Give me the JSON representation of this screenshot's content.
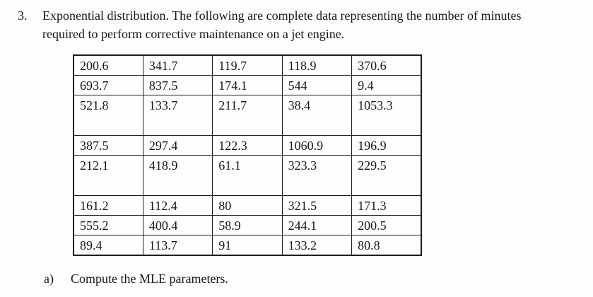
{
  "problem": {
    "number": "3.",
    "lines": [
      "Exponential distribution. The following are complete data representing the number of minutes",
      "required to perform corrective maintenance on a jet engine."
    ]
  },
  "table": {
    "rows": [
      {
        "tall": false,
        "cells": [
          "200.6",
          "341.7",
          "119.7",
          "118.9",
          "370.6"
        ]
      },
      {
        "tall": false,
        "cells": [
          "693.7",
          "837.5",
          "174.1",
          "544",
          "9.4"
        ]
      },
      {
        "tall": true,
        "cells": [
          "521.8",
          "133.7",
          "211.7",
          "38.4",
          "1053.3"
        ]
      },
      {
        "tall": false,
        "cells": [
          "387.5",
          "297.4",
          "122.3",
          "1060.9",
          "196.9"
        ]
      },
      {
        "tall": true,
        "cells": [
          "212.1",
          "418.9",
          "61.1",
          "323.3",
          "229.5"
        ]
      },
      {
        "tall": false,
        "cells": [
          "161.2",
          "112.4",
          "80",
          "321.5",
          "171.3"
        ]
      },
      {
        "tall": false,
        "cells": [
          "555.2",
          "400.4",
          "58.9",
          "244.1",
          "200.5"
        ]
      },
      {
        "tall": false,
        "cells": [
          "89.4",
          "113.7",
          "91",
          "133.2",
          "80.8"
        ]
      }
    ]
  },
  "subquestion": {
    "label": "a)",
    "text": "Compute the MLE parameters."
  },
  "colors": {
    "text": "#161616",
    "border": "#1c1c1c",
    "background": "#fefefe"
  }
}
